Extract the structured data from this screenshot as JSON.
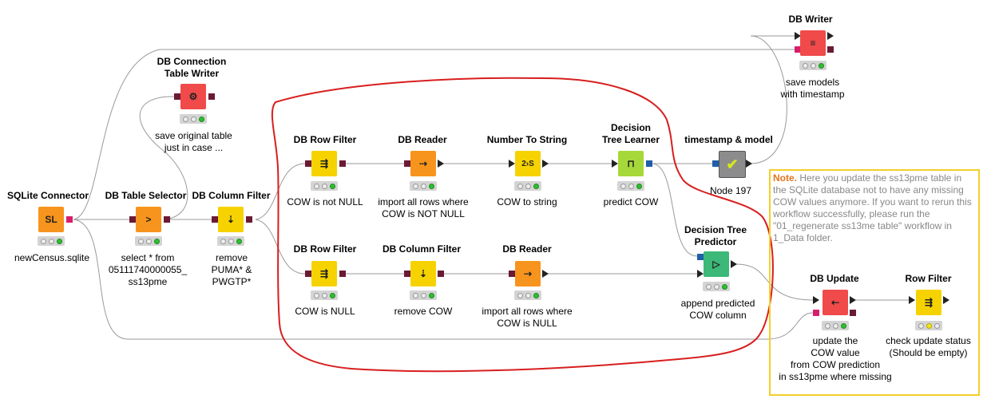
{
  "nodes": {
    "sqlite": {
      "title": "SQLite Connector",
      "label": "newCensus.sqlite",
      "icon": "SL"
    },
    "table_selector": {
      "title": "DB Table Selector",
      "label": "select * from\n05111740000055_\nss13pme",
      "icon": ">"
    },
    "conn_writer": {
      "title": "DB Connection\nTable Writer",
      "label": "save original table\njust in case ...",
      "icon": "⚙"
    },
    "col_filter1": {
      "title": "DB Column Filter",
      "label": "remove\nPUMA* &\nPWGTP*",
      "icon": "⇣"
    },
    "row_filter1": {
      "title": "DB Row Filter",
      "label": "COW is not NULL",
      "icon": "⇶"
    },
    "reader1": {
      "title": "DB Reader",
      "label": "import all rows where\nCOW is NOT NULL",
      "icon": "⇢"
    },
    "num_to_str": {
      "title": "Number To String",
      "label": "COW to string",
      "icon": "2›S"
    },
    "tree_learner": {
      "title": "Decision\nTree Learner",
      "label": "predict COW",
      "icon": "⊓"
    },
    "timestamp": {
      "title": "timestamp & model",
      "label": "Node 197",
      "icon": "✔"
    },
    "db_writer": {
      "title": "DB Writer",
      "label": "save models\nwith timestamp",
      "icon": "≡"
    },
    "row_filter2": {
      "title": "DB Row Filter",
      "label": "COW is NULL",
      "icon": "⇶"
    },
    "col_filter2": {
      "title": "DB Column Filter",
      "label": "remove COW",
      "icon": "⇣"
    },
    "reader2": {
      "title": "DB Reader",
      "label": "import all rows where\nCOW is NULL",
      "icon": "⇢"
    },
    "tree_predictor": {
      "title": "Decision Tree\nPredictor",
      "label": "append predicted\nCOW column",
      "icon": "▷"
    },
    "db_update": {
      "title": "DB Update",
      "label": "update the\nCOW value\nfrom COW prediction\nin ss13pme where missing",
      "icon": "⇠"
    },
    "row_filter3": {
      "title": "Row Filter",
      "label": "check update status\n(Should be empty)",
      "icon": "⇶"
    }
  },
  "note": {
    "head": "Note.",
    "body": " Here you update the ss13pme table in the SQLite database not to have any missing COW values anymore. If you want to rerun this workflow successfully, please run the \"01_regenerate ss13me table\" workflow in 1_Data folder."
  },
  "colors": {
    "db_red": "#f04a4a",
    "db_orange": "#f7941d",
    "manip_yellow": "#f6d200",
    "learner_green": "#a6d83a",
    "predictor_green": "#3cb878",
    "meta_gray": "#8c8c8c",
    "highlight": "#d81e1e",
    "note_border": "#f3cf2a"
  }
}
